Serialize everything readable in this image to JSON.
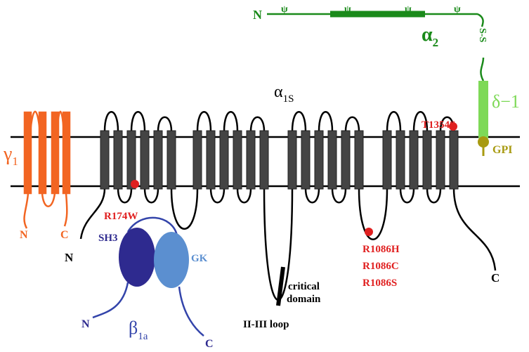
{
  "alpha2": {
    "terminus": "N",
    "glyco": [
      "ψ",
      "ψ",
      "ψ",
      "ψ"
    ],
    "label": {
      "symbol": "α",
      "subscript": "2"
    },
    "disulfide": "S-S"
  },
  "delta": {
    "label": "δ−1",
    "anchor": "GPI"
  },
  "alpha1s": {
    "label": {
      "symbol": "α",
      "subscript": "1S"
    },
    "n_terminus": "N",
    "c_terminus": "C",
    "mutations": [
      "R174W",
      "T1354S",
      "R1086H",
      "R1086C",
      "R1086S"
    ],
    "loop": "II-III loop",
    "critical": [
      "critical",
      "domain"
    ]
  },
  "gamma1": {
    "label": {
      "symbol": "γ",
      "subscript": "1"
    },
    "n": "N",
    "c": "C"
  },
  "beta1a": {
    "label": {
      "symbol": "β",
      "subscript": "1a"
    },
    "sh3": "SH3",
    "gk": "GK",
    "n": "N",
    "c": "C"
  }
}
